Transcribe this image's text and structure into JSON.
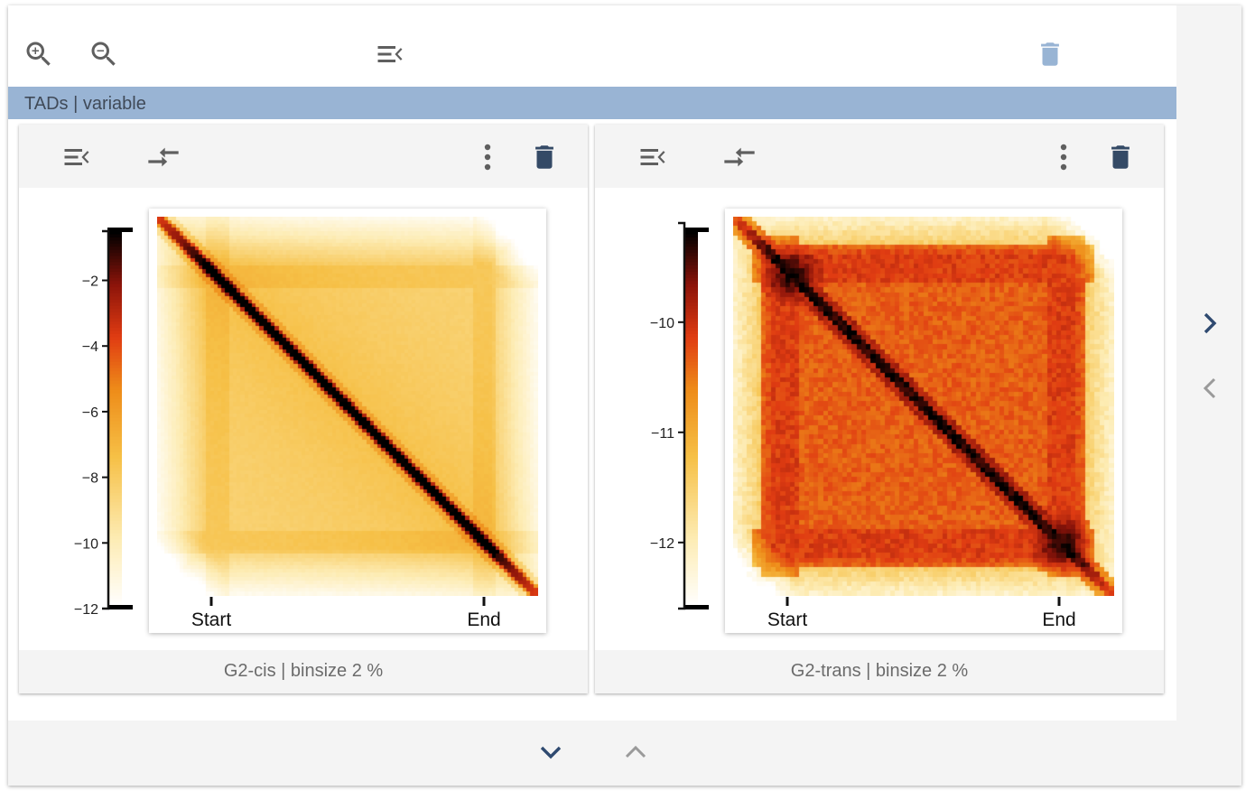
{
  "header": {
    "zoom_in_icon": "zoom-in-icon",
    "zoom_out_icon": "zoom-out-icon",
    "collapse_icon": "menu-collapse-icon",
    "delete_icon": "trash-icon",
    "delete_color": "#98b4d4"
  },
  "banner": {
    "label": "TADs | variable",
    "color": "#99b4d4"
  },
  "navigation": {
    "next_icon": "chevron-right-icon",
    "prev_icon": "chevron-left-icon",
    "down_icon": "chevron-down-icon",
    "up_icon": "chevron-up-icon"
  },
  "cards": [
    {
      "caption": "G2-cis | binsize 2 %",
      "colorbar": {
        "ticks": [
          "−2",
          "−4",
          "−6",
          "−8",
          "−10",
          "−12"
        ],
        "range": [
          -12,
          -0.5
        ]
      },
      "xticks": [
        "Start",
        "End"
      ],
      "pattern": "cis"
    },
    {
      "caption": "G2-trans | binsize 2 %",
      "colorbar": {
        "ticks": [
          "−10",
          "−11",
          "−12"
        ],
        "range": [
          -12.6,
          -9.1
        ]
      },
      "xticks": [
        "Start",
        "End"
      ],
      "pattern": "trans"
    }
  ],
  "colors": {
    "toolbar_icon": "#616161",
    "trash_dark": "#344a66",
    "chevron_dark": "#2f4a70",
    "chevron_light": "#9a9a9a"
  }
}
